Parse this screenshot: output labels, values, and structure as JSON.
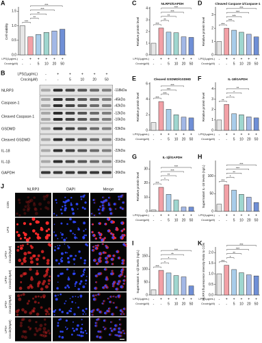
{
  "conditions": {
    "row_labels": [
      "LPS(1μg/mL)",
      "Crocin(μM)"
    ],
    "lps": [
      "-",
      "+",
      "+",
      "+",
      "+",
      "+"
    ],
    "crocin": [
      "-",
      "-",
      "5",
      "10",
      "20",
      "50"
    ],
    "colors": [
      "#e6e6e6",
      "#f2a0a6",
      "#a9cdea",
      "#9fd6cf",
      "#a3b8e6",
      "#6f8fd6"
    ]
  },
  "chart_data": [
    {
      "type": "bar",
      "label": "A",
      "ylabel": "Cell viability",
      "values": [
        1.0,
        0.62,
        0.7,
        0.77,
        0.82,
        0.88
      ],
      "ylim": [
        0,
        1.6
      ],
      "yticks": [
        {
          "value": 0,
          "label": "0.0"
        },
        {
          "value": 0.5,
          "label": "0.5"
        },
        {
          "value": 1,
          "label": "1.0"
        },
        {
          "value": 1.5,
          "label": "1.5"
        }
      ],
      "significance": [
        "***",
        "**",
        "**",
        "***",
        "***"
      ]
    },
    {
      "type": "bar",
      "label": "C",
      "title": "NLRP3/GAPDH",
      "ylabel": "Relative protein level",
      "values": [
        1.0,
        2.3,
        1.95,
        1.9,
        1.55,
        1.5
      ],
      "ylim": [
        0,
        4
      ],
      "yticks": [
        0,
        1,
        2,
        3,
        4
      ],
      "significance": [
        "***",
        "**",
        "**",
        "***",
        "***"
      ]
    },
    {
      "type": "bar",
      "label": "D",
      "title": "Cleaved Caspase-1/Caspase-1",
      "ylabel": "Relative protein level",
      "values": [
        1.0,
        2.0,
        1.85,
        1.7,
        1.55,
        1.35
      ],
      "ylim": [
        0,
        3.5
      ],
      "yticks": [
        0,
        1,
        2,
        3
      ],
      "significance": [
        "***",
        "***",
        "***",
        "***",
        "***"
      ]
    },
    {
      "type": "bar",
      "label": "E",
      "title": "Cleaved GSDMD/GSDMD",
      "ylabel": "Relative protein level",
      "values": [
        1.0,
        3.7,
        2.7,
        2.0,
        1.7,
        1.6
      ],
      "ylim": [
        0,
        6
      ],
      "yticks": [
        0,
        2,
        4,
        6
      ],
      "significance": [
        "***",
        "***",
        "***",
        "***"
      ]
    },
    {
      "type": "bar",
      "label": "F",
      "title": "IL-18/GAPDH",
      "ylabel": "Relative protein level",
      "values": [
        1.0,
        2.5,
        1.6,
        1.5,
        1.3,
        1.2
      ],
      "ylim": [
        0,
        4.5
      ],
      "yticks": [
        0,
        1,
        2,
        3,
        4
      ],
      "significance": [
        "**",
        "*",
        "*",
        "**"
      ]
    },
    {
      "type": "bar",
      "label": "G",
      "title": "IL-1β/GAPDH",
      "ylabel": "Relative protein level",
      "values": [
        1.0,
        17,
        12,
        8,
        3,
        3
      ],
      "ylim": [
        0,
        35
      ],
      "yticks": [
        0,
        10,
        20,
        30
      ],
      "significance": [
        "***",
        "*",
        "**",
        "***",
        "***"
      ]
    },
    {
      "type": "bar",
      "label": "H",
      "ylabel": "Supernatant IL-18 levels (ng/L)",
      "values": [
        20,
        75,
        60,
        48,
        40,
        25
      ],
      "ylim": [
        0,
        140
      ],
      "yticks": [
        0,
        50,
        100
      ],
      "significance": [
        "***",
        "*",
        "**",
        "***",
        "***"
      ]
    },
    {
      "type": "bar",
      "label": "I",
      "ylabel": "Supernatant IL-1β levels (ng/L)",
      "values": [
        20,
        95,
        85,
        75,
        70,
        35
      ],
      "ylim": [
        0,
        180
      ],
      "yticks": [
        0,
        50,
        100,
        150
      ],
      "significance": [
        "***",
        "*",
        "*",
        "**",
        "***"
      ]
    },
    {
      "type": "bar",
      "label": "K",
      "ylabel": "NLRP3 fluorescence intensity Ratio to CON",
      "values": [
        1.0,
        1.4,
        1.2,
        1.05,
        0.95,
        0.9
      ],
      "ylim": [
        0,
        2.2
      ],
      "yticks": [
        {
          "value": 0,
          "label": "0.0"
        },
        {
          "value": 0.5,
          "label": "0.5"
        },
        {
          "value": 1,
          "label": "1.0"
        },
        {
          "value": 1.5,
          "label": "1.5"
        },
        {
          "value": 2,
          "label": "2.0"
        }
      ],
      "significance": [
        "***",
        "*",
        "**",
        "***",
        "***"
      ]
    }
  ],
  "blot": {
    "label": "B",
    "rows": [
      {
        "name": "NLRP3",
        "kda": [
          "-118kDa"
        ]
      },
      {
        "name": "Caspase-1",
        "kda": [
          "-45kDa",
          "-42kDa"
        ]
      },
      {
        "name": "Cleaved Caspase-1",
        "kda": [
          "-12kDa",
          "-10kDa"
        ]
      },
      {
        "name": "GSDMD",
        "kda": [
          "-53kDa"
        ]
      },
      {
        "name": "Cleaved GSDMD",
        "kda": [
          "-31kDa"
        ]
      },
      {
        "name": "IL-18",
        "kda": [
          "-22kDa"
        ]
      },
      {
        "name": "IL-1β",
        "kda": [
          "-31kDa"
        ]
      },
      {
        "name": "GAPDH",
        "kda": [
          "-36kDa"
        ]
      }
    ]
  },
  "images": {
    "label": "J",
    "columns": [
      {
        "name": "NLRP3",
        "color": "#e02020"
      },
      {
        "name": "DAPI",
        "color": "#2a3fd8"
      },
      {
        "name": "Merge",
        "color": "#e02020"
      }
    ],
    "rows": [
      [
        "CON"
      ],
      [
        "LPS"
      ],
      [
        "LPS+",
        "Crocin(5μM)"
      ],
      [
        "LPS+",
        "Crocin(10μM)"
      ],
      [
        "LPS+",
        "Crocin(20μM)"
      ],
      [
        "LPS+",
        "Crocin(50μM)"
      ]
    ]
  }
}
